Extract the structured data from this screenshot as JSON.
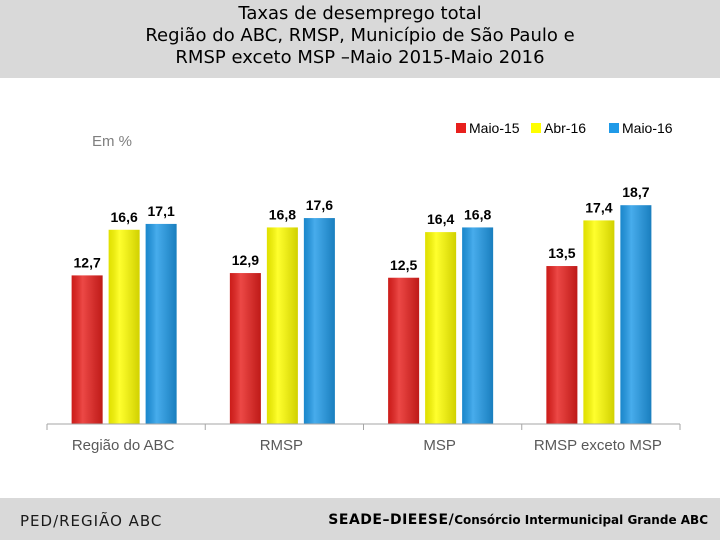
{
  "header": {
    "title_line1": "Taxas de desemprego total",
    "title_line2": "Região do ABC, RMSP, Município de São Paulo e",
    "title_line3": "RMSP exceto MSP –Maio 2015-Maio 2016"
  },
  "chart_data": {
    "type": "bar",
    "unit_label": "Em %",
    "categories": [
      "Região do ABC",
      "RMSP",
      "MSP",
      "RMSP exceto MSP"
    ],
    "series": [
      {
        "name": "Maio-15",
        "color": "#e8201d",
        "values": [
          12.7,
          12.9,
          12.5,
          13.5
        ],
        "labels": [
          "12,7",
          "12,9",
          "12,5",
          "13,5"
        ]
      },
      {
        "name": "Abr-16",
        "color": "#ffff00",
        "values": [
          16.6,
          16.8,
          16.4,
          17.4
        ],
        "labels": [
          "16,6",
          "16,8",
          "16,4",
          "17,4"
        ]
      },
      {
        "name": "Maio-16",
        "color": "#1f9ae8",
        "values": [
          17.1,
          17.6,
          16.8,
          18.7
        ],
        "labels": [
          "17,1",
          "17,6",
          "16,8",
          "18,7"
        ]
      }
    ],
    "ylim": [
      0,
      20
    ],
    "legend_position": "top-right"
  },
  "footer": {
    "left": "PED/REGIÃO ABC",
    "right_main": "SEADE–DIEESE/",
    "right_small": "Consórcio Intermunicipal Grande ABC"
  }
}
